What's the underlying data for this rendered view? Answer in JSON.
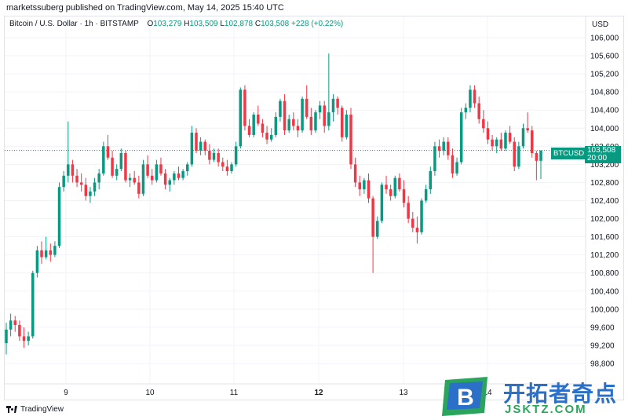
{
  "header": {
    "caption": "marketssuberg published on TradingView.com, May 14, 2025 15:40 UTC"
  },
  "legend": {
    "symbol": "Bitcoin / U.S. Dollar · 1h · BITSTAMP",
    "o_label": "O",
    "o_value": "103,279",
    "h_label": "H",
    "h_value": "103,509",
    "l_label": "L",
    "l_value": "102,878",
    "c_label": "C",
    "c_value": "103,508",
    "change": "+228 (+0.22%)"
  },
  "axis": {
    "unit": "USD",
    "y_ticks": [
      "106,000",
      "105,600",
      "105,200",
      "104,800",
      "104,400",
      "104,000",
      "103,600",
      "103,200",
      "102,800",
      "102,400",
      "102,000",
      "101,600",
      "101,200",
      "100,800",
      "100,400",
      "100,000",
      "99,600",
      "99,200",
      "98,800"
    ],
    "x_ticks": [
      "9",
      "10",
      "11",
      "12",
      "13",
      "14"
    ]
  },
  "price_badge": {
    "symbol": "BTCUSD",
    "price": "103,508",
    "countdown": "20:00"
  },
  "branding": {
    "platform": "TradingView"
  },
  "watermark": {
    "logo_letter": "B",
    "title": "开拓者奇点",
    "url": "JSKTZ.COM"
  },
  "colors": {
    "up": "#089981",
    "down": "#f23645",
    "price_line": "#089981",
    "watermark_blue": "#2a70c9",
    "watermark_green": "#2aa55b"
  },
  "chart_data": {
    "type": "candlestick",
    "title": "Bitcoin / U.S. Dollar · 1h · BITSTAMP",
    "ylabel": "USD",
    "ylim": [
      98700,
      106350
    ],
    "x_day_labels": [
      "9",
      "10",
      "11",
      "12",
      "13",
      "14"
    ],
    "last_price": 103508,
    "ohlc": [
      [
        99250,
        99700,
        99000,
        99550
      ],
      [
        99550,
        99900,
        99400,
        99750
      ],
      [
        99750,
        99850,
        99500,
        99650
      ],
      [
        99650,
        99750,
        99300,
        99400
      ],
      [
        99400,
        99600,
        99150,
        99300
      ],
      [
        99300,
        99500,
        99200,
        99400
      ],
      [
        99400,
        100850,
        99350,
        100800
      ],
      [
        100800,
        101400,
        100700,
        101300
      ],
      [
        101300,
        101500,
        101000,
        101150
      ],
      [
        101150,
        101600,
        101100,
        101300
      ],
      [
        101300,
        101450,
        101050,
        101200
      ],
      [
        101200,
        101500,
        101150,
        101400
      ],
      [
        101400,
        102800,
        101350,
        102700
      ],
      [
        102700,
        103050,
        102600,
        102950
      ],
      [
        102950,
        104150,
        102800,
        103200
      ],
      [
        103200,
        103300,
        102800,
        102950
      ],
      [
        102950,
        103100,
        102700,
        102800
      ],
      [
        102800,
        103000,
        102600,
        102750
      ],
      [
        102750,
        102900,
        102400,
        102500
      ],
      [
        102500,
        102700,
        102350,
        102600
      ],
      [
        102600,
        102900,
        102500,
        102800
      ],
      [
        102800,
        103100,
        102650,
        103000
      ],
      [
        103000,
        103700,
        102950,
        103600
      ],
      [
        103600,
        103850,
        103300,
        103350
      ],
      [
        103350,
        103500,
        102900,
        102950
      ],
      [
        102950,
        103200,
        102850,
        103100
      ],
      [
        103100,
        103550,
        103050,
        103450
      ],
      [
        103450,
        103500,
        102800,
        102850
      ],
      [
        102850,
        103000,
        102700,
        102900
      ],
      [
        102900,
        103050,
        102750,
        102800
      ],
      [
        102800,
        102950,
        102450,
        102550
      ],
      [
        102550,
        103300,
        102500,
        103200
      ],
      [
        103200,
        103400,
        102900,
        102950
      ],
      [
        102950,
        103100,
        102750,
        102850
      ],
      [
        102850,
        103300,
        102800,
        103200
      ],
      [
        103200,
        103350,
        102950,
        103000
      ],
      [
        103000,
        103100,
        102650,
        102750
      ],
      [
        102750,
        102900,
        102600,
        102850
      ],
      [
        102850,
        103050,
        102750,
        103000
      ],
      [
        103000,
        103150,
        102850,
        102900
      ],
      [
        102900,
        103100,
        102850,
        103050
      ],
      [
        103050,
        103250,
        102950,
        103200
      ],
      [
        103200,
        104050,
        103150,
        103900
      ],
      [
        103900,
        104000,
        103450,
        103500
      ],
      [
        103500,
        103800,
        103400,
        103700
      ],
      [
        103700,
        103750,
        103400,
        103500
      ],
      [
        103500,
        103650,
        103200,
        103300
      ],
      [
        103300,
        103550,
        103250,
        103450
      ],
      [
        103450,
        103550,
        103150,
        103250
      ],
      [
        103250,
        103350,
        103050,
        103150
      ],
      [
        103150,
        103300,
        102950,
        103050
      ],
      [
        103050,
        103250,
        103000,
        103200
      ],
      [
        103200,
        103700,
        103150,
        103600
      ],
      [
        103600,
        104900,
        103550,
        104850
      ],
      [
        104850,
        104950,
        103950,
        104050
      ],
      [
        104050,
        104200,
        103800,
        103850
      ],
      [
        103850,
        104350,
        103800,
        104300
      ],
      [
        104300,
        104500,
        104050,
        104100
      ],
      [
        104100,
        104200,
        103800,
        103900
      ],
      [
        103900,
        104050,
        103650,
        103750
      ],
      [
        103750,
        104000,
        103700,
        103850
      ],
      [
        103850,
        104350,
        103800,
        104250
      ],
      [
        104250,
        104650,
        104150,
        104600
      ],
      [
        104600,
        104750,
        103850,
        103950
      ],
      [
        103950,
        104300,
        103900,
        104200
      ],
      [
        104200,
        104350,
        103950,
        104050
      ],
      [
        104050,
        104200,
        103800,
        103950
      ],
      [
        103950,
        104700,
        103900,
        104650
      ],
      [
        104650,
        104950,
        104200,
        104250
      ],
      [
        104250,
        104450,
        103850,
        103950
      ],
      [
        103950,
        104400,
        103900,
        104350
      ],
      [
        104350,
        104600,
        104200,
        104500
      ],
      [
        104500,
        104600,
        103900,
        104050
      ],
      [
        104050,
        105650,
        103950,
        104350
      ],
      [
        104350,
        104750,
        104150,
        104650
      ],
      [
        104650,
        104700,
        104300,
        104450
      ],
      [
        104450,
        104500,
        103700,
        103800
      ],
      [
        103800,
        104400,
        103750,
        104300
      ],
      [
        104300,
        104450,
        103100,
        103200
      ],
      [
        103200,
        103350,
        102700,
        102800
      ],
      [
        102800,
        102950,
        102500,
        102650
      ],
      [
        102650,
        102900,
        102550,
        102850
      ],
      [
        102850,
        103000,
        102350,
        102450
      ],
      [
        102450,
        102500,
        100800,
        101600
      ],
      [
        101600,
        102050,
        101550,
        101950
      ],
      [
        101950,
        102800,
        101900,
        102750
      ],
      [
        102750,
        102950,
        102550,
        102650
      ],
      [
        102650,
        102750,
        102400,
        102500
      ],
      [
        102500,
        102950,
        102450,
        102900
      ],
      [
        102900,
        103000,
        102600,
        102650
      ],
      [
        102650,
        102850,
        102250,
        102350
      ],
      [
        102350,
        102500,
        101900,
        102000
      ],
      [
        102000,
        102150,
        101700,
        101800
      ],
      [
        101800,
        102050,
        101450,
        101700
      ],
      [
        101700,
        102450,
        101650,
        102400
      ],
      [
        102400,
        102750,
        102350,
        102650
      ],
      [
        102650,
        103150,
        102550,
        103050
      ],
      [
        103050,
        103700,
        102950,
        103600
      ],
      [
        103600,
        103750,
        103350,
        103500
      ],
      [
        103500,
        103800,
        103400,
        103700
      ],
      [
        103700,
        103800,
        103300,
        103400
      ],
      [
        103400,
        103550,
        102900,
        103000
      ],
      [
        103000,
        103350,
        102950,
        103250
      ],
      [
        103250,
        104450,
        103200,
        104350
      ],
      [
        104350,
        104550,
        104200,
        104450
      ],
      [
        104450,
        104950,
        104350,
        104850
      ],
      [
        104850,
        104950,
        104450,
        104550
      ],
      [
        104550,
        104700,
        104100,
        104200
      ],
      [
        104200,
        104400,
        103900,
        104000
      ],
      [
        104000,
        104150,
        103650,
        103750
      ],
      [
        103750,
        103850,
        103500,
        103600
      ],
      [
        103600,
        103800,
        103450,
        103750
      ],
      [
        103750,
        103900,
        103500,
        103550
      ],
      [
        103550,
        103950,
        103500,
        103900
      ],
      [
        103900,
        104050,
        103650,
        103700
      ],
      [
        103700,
        103800,
        103050,
        103150
      ],
      [
        103150,
        103700,
        103100,
        103600
      ],
      [
        103600,
        104100,
        103550,
        104000
      ],
      [
        104000,
        104350,
        103900,
        103950
      ],
      [
        103950,
        104050,
        103350,
        103450
      ],
      [
        103450,
        103500,
        102850,
        103279
      ],
      [
        103279,
        103509,
        102878,
        103508
      ]
    ]
  }
}
